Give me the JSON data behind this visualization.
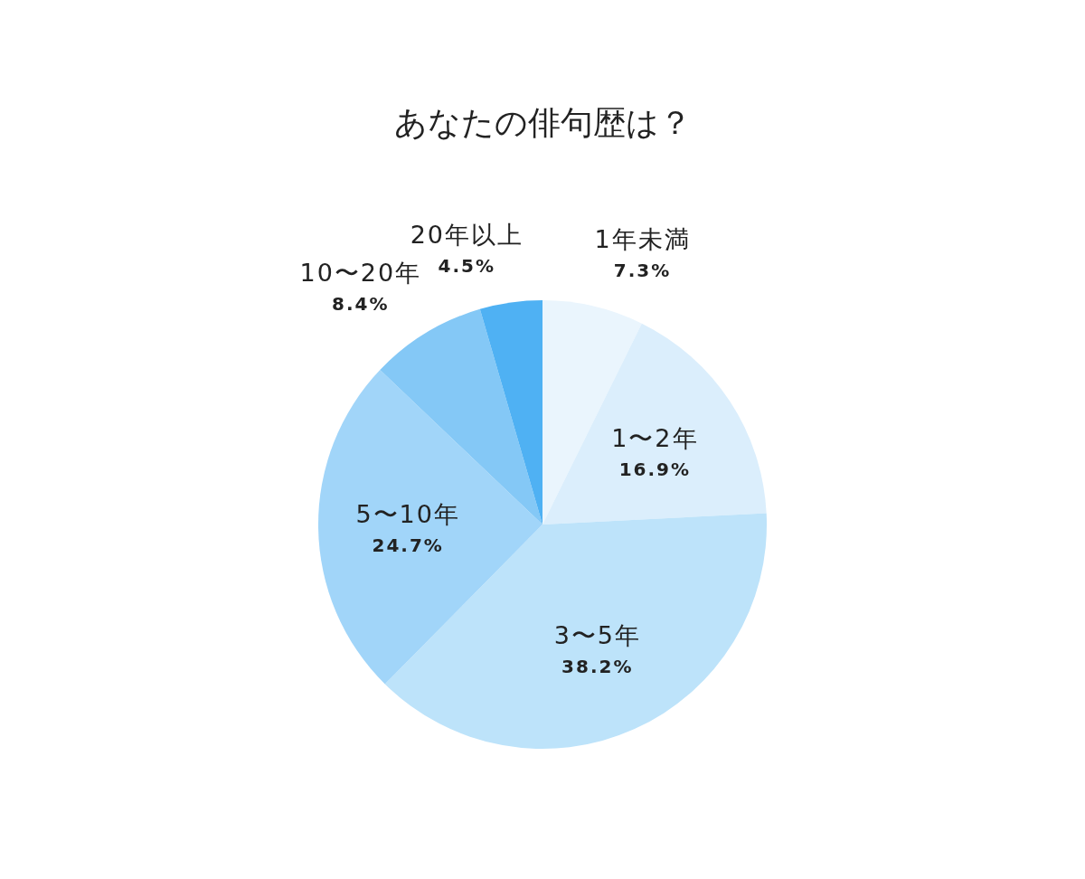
{
  "chart_data": {
    "type": "pie",
    "title": "あなたの俳句歴は？",
    "categories": [
      "1年未満",
      "1〜2年",
      "3〜5年",
      "5〜10年",
      "10〜20年",
      "20年以上"
    ],
    "values": [
      7.3,
      16.9,
      38.2,
      24.7,
      8.4,
      4.5
    ],
    "value_labels": [
      "7.3%",
      "16.9%",
      "38.2%",
      "24.7%",
      "8.4%",
      "4.5%"
    ],
    "colors": [
      "#eaf5fd",
      "#dbeefc",
      "#bde3fa",
      "#a1d5f9",
      "#84c8f6",
      "#4fb1f3"
    ]
  }
}
